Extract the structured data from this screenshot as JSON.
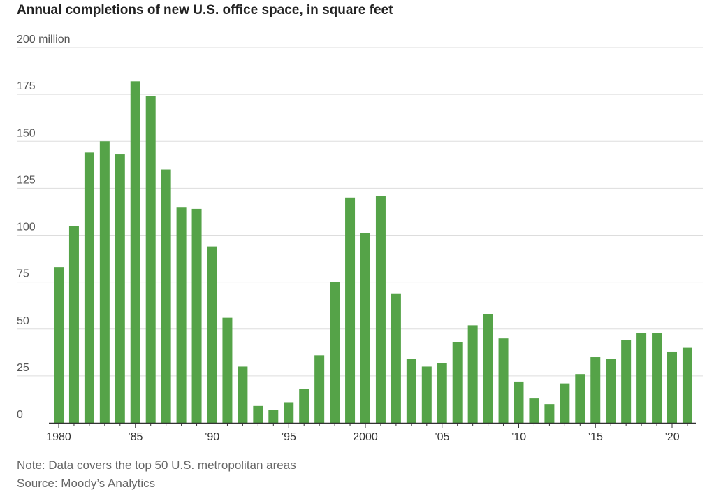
{
  "chart_data": {
    "type": "bar",
    "title": "Annual completions of new U.S. office space, in square feet",
    "xlabel": "",
    "ylabel": "",
    "ylim": [
      0,
      200
    ],
    "y_ticks": [
      {
        "value": 0,
        "label": "0"
      },
      {
        "value": 25,
        "label": "25"
      },
      {
        "value": 50,
        "label": "50"
      },
      {
        "value": 75,
        "label": "75"
      },
      {
        "value": 100,
        "label": "100"
      },
      {
        "value": 125,
        "label": "125"
      },
      {
        "value": 150,
        "label": "150"
      },
      {
        "value": 175,
        "label": "175"
      },
      {
        "value": 200,
        "label": "200 million"
      }
    ],
    "x_ticks": [
      {
        "year": 1980,
        "label": "1980"
      },
      {
        "year": 1985,
        "label": "’85"
      },
      {
        "year": 1990,
        "label": "’90"
      },
      {
        "year": 1995,
        "label": "’95"
      },
      {
        "year": 2000,
        "label": "2000"
      },
      {
        "year": 2005,
        "label": "’05"
      },
      {
        "year": 2010,
        "label": "’10"
      },
      {
        "year": 2015,
        "label": "’15"
      },
      {
        "year": 2020,
        "label": "’20"
      }
    ],
    "grid": true,
    "bar_color": "#55a348",
    "categories": [
      1980,
      1981,
      1982,
      1983,
      1984,
      1985,
      1986,
      1987,
      1988,
      1989,
      1990,
      1991,
      1992,
      1993,
      1994,
      1995,
      1996,
      1997,
      1998,
      1999,
      2000,
      2001,
      2002,
      2003,
      2004,
      2005,
      2006,
      2007,
      2008,
      2009,
      2010,
      2011,
      2012,
      2013,
      2014,
      2015,
      2016,
      2017,
      2018,
      2019,
      2020,
      2021
    ],
    "values": [
      83,
      105,
      144,
      150,
      143,
      182,
      174,
      135,
      115,
      114,
      94,
      56,
      30,
      9,
      7,
      11,
      18,
      36,
      75,
      120,
      101,
      121,
      69,
      34,
      30,
      32,
      43,
      52,
      58,
      45,
      22,
      13,
      10,
      21,
      26,
      35,
      34,
      44,
      48,
      48,
      38,
      40
    ]
  },
  "notes": {
    "note": "Note: Data covers the top 50 U.S. metropolitan areas",
    "source": "Source: Moody’s Analytics"
  }
}
